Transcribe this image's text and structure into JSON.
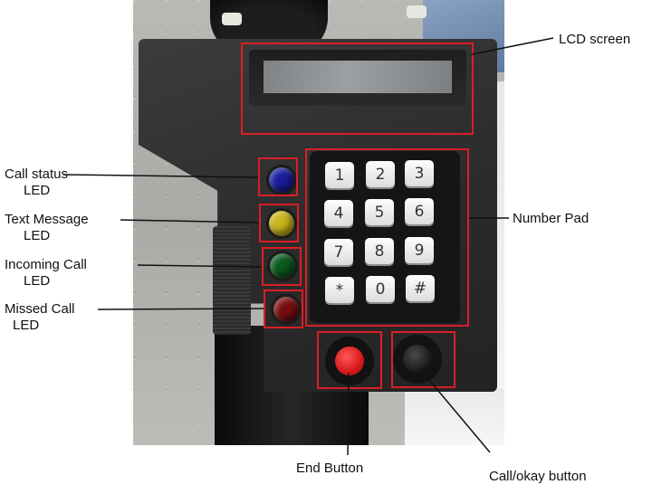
{
  "keypad": {
    "keys": [
      "1",
      "2",
      "3",
      "4",
      "5",
      "6",
      "7",
      "8",
      "9",
      "*",
      "0",
      "#"
    ]
  },
  "leds": [
    {
      "color": "#1a1e9c"
    },
    {
      "color": "#c7b51a"
    },
    {
      "color": "#0c5a1e"
    },
    {
      "color": "#7a0d10"
    }
  ],
  "labels": {
    "lcd_screen": "LCD screen",
    "number_pad": "Number Pad",
    "call_status_line1": "Call status",
    "call_status_line2": "LED",
    "text_message_line1": "Text Message",
    "text_message_line2": "LED",
    "incoming_call_line1": "Incoming Call",
    "incoming_call_line2": "LED",
    "missed_call_line1": "Missed Call",
    "missed_call_line2": "LED",
    "end_button": "End Button",
    "call_okay_button": "Call/okay button"
  },
  "colors": {
    "highlight": "#d91f26",
    "end_button": "#d6191a"
  }
}
